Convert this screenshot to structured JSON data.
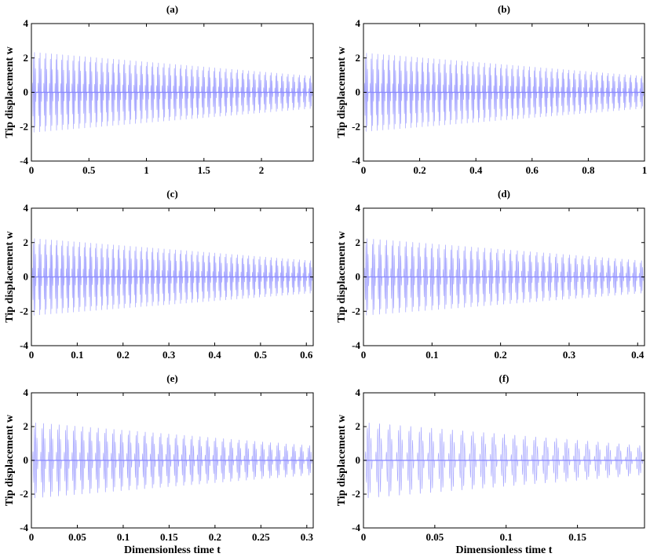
{
  "figure": {
    "ylabel": "Tip displacement w",
    "xlabel": "Dimensionless time t"
  },
  "chart_data": [
    {
      "type": "line",
      "title": "(a)",
      "ylabel": "Tip displacement w",
      "xlabel": "",
      "xlim": [
        0,
        2.45
      ],
      "ylim": [
        -4,
        4
      ],
      "xticks": [
        0,
        0.5,
        1,
        1.5,
        2
      ],
      "xtick_labels": [
        "0",
        "0.5",
        "1",
        "1.5",
        "2"
      ],
      "yticks": [
        -4,
        -2,
        0,
        2,
        4
      ],
      "ytick_labels": [
        "-4",
        "-2",
        "0",
        "2",
        "4"
      ],
      "grid": false,
      "color": "#8888ff",
      "series": [
        {
          "amplitude_start": 2.5,
          "amplitude_end": 1.0,
          "oscillations": 50,
          "t_start": 0,
          "t_end": 2.45
        }
      ]
    },
    {
      "type": "line",
      "title": "(b)",
      "ylabel": "Tip displacement w",
      "xlabel": "",
      "xlim": [
        0,
        1
      ],
      "ylim": [
        -4,
        4
      ],
      "xticks": [
        0,
        0.2,
        0.4,
        0.6,
        0.8,
        1
      ],
      "xtick_labels": [
        "0",
        "0.2",
        "0.4",
        "0.6",
        "0.8",
        "1"
      ],
      "yticks": [
        -4,
        -2,
        0,
        2,
        4
      ],
      "ytick_labels": [
        "-4",
        "-2",
        "0",
        "2",
        "4"
      ],
      "grid": false,
      "color": "#8888ff",
      "series": [
        {
          "amplitude_start": 2.45,
          "amplitude_end": 1.0,
          "oscillations": 50,
          "t_start": 0,
          "t_end": 1.0
        }
      ]
    },
    {
      "type": "line",
      "title": "(c)",
      "ylabel": "Tip displacement w",
      "xlabel": "",
      "xlim": [
        0,
        0.615
      ],
      "ylim": [
        -4,
        4
      ],
      "xticks": [
        0,
        0.1,
        0.2,
        0.3,
        0.4,
        0.5,
        0.6
      ],
      "xtick_labels": [
        "0",
        "0.1",
        "0.2",
        "0.3",
        "0.4",
        "0.5",
        "0.6"
      ],
      "yticks": [
        -4,
        -2,
        0,
        2,
        4
      ],
      "ytick_labels": [
        "-4",
        "-2",
        "0",
        "2",
        "4"
      ],
      "grid": false,
      "color": "#8888ff",
      "series": [
        {
          "amplitude_start": 2.4,
          "amplitude_end": 1.0,
          "oscillations": 50,
          "t_start": 0,
          "t_end": 0.615
        }
      ]
    },
    {
      "type": "line",
      "title": "(d)",
      "ylabel": "Tip displacement w",
      "xlabel": "",
      "xlim": [
        0,
        0.41
      ],
      "ylim": [
        -4,
        4
      ],
      "xticks": [
        0,
        0.1,
        0.2,
        0.3,
        0.4
      ],
      "xtick_labels": [
        "0",
        "0.1",
        "0.2",
        "0.3",
        "0.4"
      ],
      "yticks": [
        -4,
        -2,
        0,
        2,
        4
      ],
      "ytick_labels": [
        "-4",
        "-2",
        "0",
        "2",
        "4"
      ],
      "grid": false,
      "color": "#8888ff",
      "series": [
        {
          "amplitude_start": 2.4,
          "amplitude_end": 1.0,
          "oscillations": 43,
          "t_start": 0,
          "t_end": 0.41
        }
      ]
    },
    {
      "type": "line",
      "title": "(e)",
      "ylabel": "Tip displacement w",
      "xlabel": "Dimensionless time t",
      "xlim": [
        0,
        0.307
      ],
      "ylim": [
        -4,
        4
      ],
      "xticks": [
        0,
        0.05,
        0.1,
        0.15,
        0.2,
        0.25,
        0.3
      ],
      "xtick_labels": [
        "0",
        "0.05",
        "0.1",
        "0.15",
        "0.2",
        "0.25",
        "0.3"
      ],
      "yticks": [
        -4,
        -2,
        0,
        2,
        4
      ],
      "ytick_labels": [
        "-4",
        "-2",
        "0",
        "2",
        "4"
      ],
      "grid": false,
      "color": "#8888ff",
      "series": [
        {
          "amplitude_start": 2.4,
          "amplitude_end": 0.9,
          "oscillations": 36,
          "t_start": 0,
          "t_end": 0.307
        }
      ]
    },
    {
      "type": "line",
      "title": "(f)",
      "ylabel": "Tip displacement w",
      "xlabel": "Dimensionless time t",
      "xlim": [
        0,
        0.197
      ],
      "ylim": [
        -4,
        4
      ],
      "xticks": [
        0,
        0.05,
        0.1,
        0.15
      ],
      "xtick_labels": [
        "0",
        "0.05",
        "0.1",
        "0.15"
      ],
      "yticks": [
        -4,
        -2,
        0,
        2,
        4
      ],
      "ytick_labels": [
        "-4",
        "-2",
        "0",
        "2",
        "4"
      ],
      "grid": false,
      "color": "#8888ff",
      "series": [
        {
          "amplitude_start": 2.4,
          "amplitude_end": 0.9,
          "oscillations": 27,
          "t_start": 0,
          "t_end": 0.197
        }
      ]
    }
  ]
}
